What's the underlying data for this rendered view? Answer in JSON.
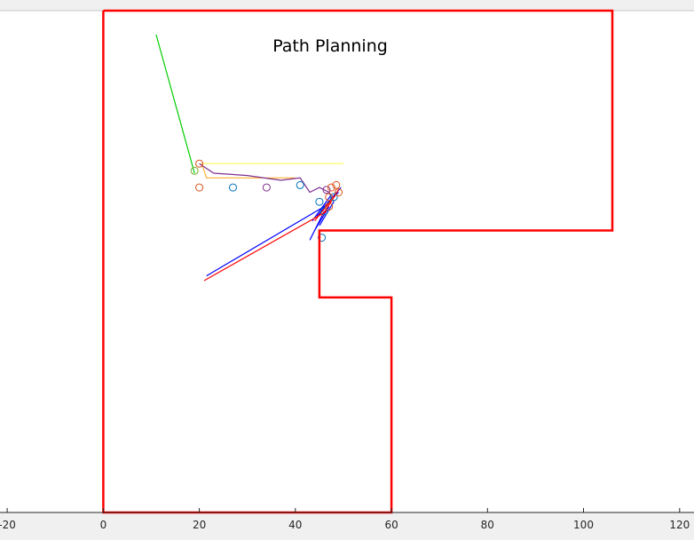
{
  "chart_data": {
    "type": "line",
    "title": "Path Planning",
    "xlabel": "",
    "ylabel": "",
    "xlim": [
      -21.5,
      123
    ],
    "ylim": [
      -30,
      112
    ],
    "grid": false,
    "xticks": [
      "-20",
      "0",
      "20",
      "40",
      "60",
      "80",
      "100",
      "120"
    ],
    "xtick_values": [
      -20,
      0,
      20,
      40,
      60,
      80,
      100,
      120
    ],
    "colors": {
      "boundary": "#ff0000",
      "green_path": "#00cc00",
      "yellow_path": "#ffff55",
      "orange_path": "#ffb030",
      "purple_path": "#7e2f8e",
      "blue_arrows": "#0000ff",
      "red_arrows": "#ff0000",
      "marker_blue": "#0072bd",
      "marker_red": "#d95319",
      "marker_purple": "#7e2f8e",
      "marker_green": "#77ac30"
    },
    "series": [
      {
        "key": "boundary",
        "x": [
          0,
          106,
          106,
          45,
          45,
          60,
          60,
          0,
          0
        ],
        "y": [
          105,
          105,
          59,
          59,
          45,
          45,
          0,
          0,
          105
        ]
      },
      {
        "key": "green_path",
        "x": [
          11,
          19
        ],
        "y": [
          100,
          71
        ]
      },
      {
        "key": "yellow_path",
        "x": [
          20.5,
          50
        ],
        "y": [
          73,
          73
        ]
      },
      {
        "key": "orange_path",
        "x": [
          20.5,
          21.5,
          40
        ],
        "y": [
          73,
          70,
          70
        ]
      },
      {
        "key": "purple_path",
        "x": [
          20,
          23,
          30,
          37,
          41,
          43,
          45,
          47,
          48
        ],
        "y": [
          73,
          71,
          70.5,
          69.5,
          70,
          67,
          68,
          67,
          65
        ]
      }
    ],
    "markers": [
      {
        "x": 20,
        "y": 68,
        "c": "marker_red"
      },
      {
        "x": 27,
        "y": 68,
        "c": "marker_blue"
      },
      {
        "x": 34,
        "y": 68,
        "c": "marker_purple"
      },
      {
        "x": 41,
        "y": 68.5,
        "c": "marker_blue"
      },
      {
        "x": 20,
        "y": 73,
        "c": "marker_red"
      },
      {
        "x": 19,
        "y": 71.5,
        "c": "marker_green"
      },
      {
        "x": 45.5,
        "y": 57.5,
        "c": "marker_blue"
      },
      {
        "x": 46,
        "y": 63,
        "c": "marker_blue"
      },
      {
        "x": 47,
        "y": 64,
        "c": "marker_red"
      },
      {
        "x": 48,
        "y": 66,
        "c": "marker_blue"
      },
      {
        "x": 46.5,
        "y": 67.5,
        "c": "marker_purple"
      },
      {
        "x": 47.5,
        "y": 68,
        "c": "marker_red"
      },
      {
        "x": 48.5,
        "y": 68.5,
        "c": "marker_red"
      },
      {
        "x": 49,
        "y": 67,
        "c": "marker_red"
      },
      {
        "x": 45,
        "y": 65,
        "c": "marker_blue"
      },
      {
        "x": 47,
        "y": 66,
        "c": "marker_red"
      }
    ],
    "arrows": {
      "blue": [
        {
          "x0": 21.5,
          "y0": 49.5,
          "x1": 46,
          "y1": 64
        },
        {
          "x0": 43,
          "y0": 57,
          "x1": 46,
          "y1": 63
        },
        {
          "x0": 44,
          "y0": 59,
          "x1": 47,
          "y1": 64
        },
        {
          "x0": 45,
          "y0": 60,
          "x1": 48,
          "y1": 65
        },
        {
          "x0": 44.5,
          "y0": 62,
          "x1": 48,
          "y1": 66
        },
        {
          "x0": 45,
          "y0": 63,
          "x1": 49,
          "y1": 67
        },
        {
          "x0": 46,
          "y0": 64,
          "x1": 49.5,
          "y1": 68
        },
        {
          "x0": 43.5,
          "y0": 61,
          "x1": 47.5,
          "y1": 66.5
        }
      ],
      "red": [
        {
          "x0": 21,
          "y0": 48.5,
          "x1": 46.5,
          "y1": 63
        },
        {
          "x0": 44,
          "y0": 61,
          "x1": 48,
          "y1": 66
        },
        {
          "x0": 45.5,
          "y0": 62,
          "x1": 49,
          "y1": 67.5
        }
      ]
    }
  }
}
